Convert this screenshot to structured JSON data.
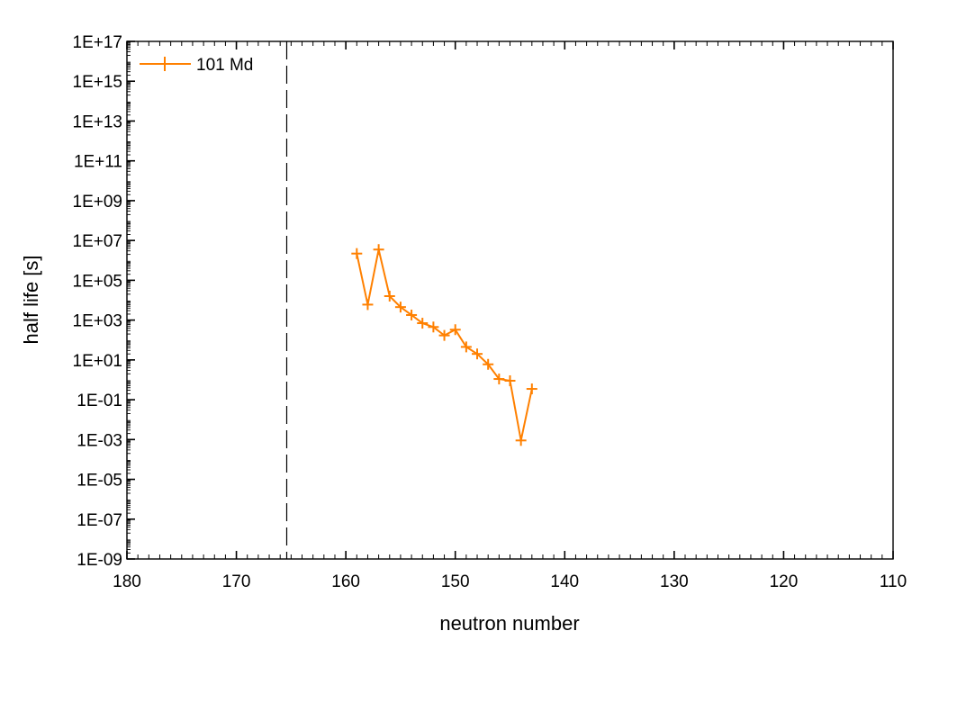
{
  "chart_data": {
    "type": "line",
    "xlabel": "neutron number",
    "ylabel": "half life [s]",
    "x_reversed": true,
    "xlim": [
      180,
      110
    ],
    "y_scale": "log",
    "ylim": [
      "1E-09",
      "1E+17"
    ],
    "x_ticks": [
      "180",
      "170",
      "160",
      "150",
      "140",
      "130",
      "120",
      "110"
    ],
    "y_ticks": [
      "1E+17",
      "1E+15",
      "1E+13",
      "1E+11",
      "1E+09",
      "1E+07",
      "1E+05",
      "1E+03",
      "1E+01",
      "1E-01",
      "1E-03",
      "1E-05",
      "1E-07",
      "1E-09"
    ],
    "grid": false,
    "legend_position": "top-left",
    "reference_line": {
      "x": 165.4,
      "style": "dashed",
      "color": "#000000"
    },
    "series": [
      {
        "name": "101 Md",
        "color": "#ff8000",
        "marker": "plus",
        "x": [
          159,
          158,
          157,
          156,
          155,
          154,
          153,
          152,
          151,
          150,
          149,
          148,
          147,
          146,
          145,
          144,
          143
        ],
        "y": [
          2200000,
          6000,
          3500000,
          16000,
          4500,
          1800,
          700,
          450,
          170,
          330,
          45,
          20,
          6,
          1.1,
          0.9,
          0.0009,
          0.35
        ]
      }
    ]
  }
}
